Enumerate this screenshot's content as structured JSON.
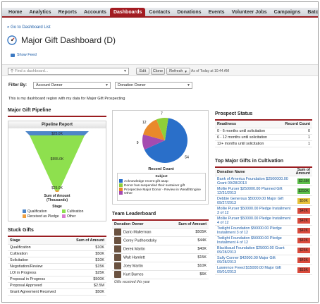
{
  "nav": {
    "tabs": [
      "Home",
      "Analytics",
      "Reports",
      "Accounts",
      "Dashboards",
      "Contacts",
      "Donations",
      "Events",
      "Volunteer Jobs",
      "Campaigns",
      "Batches",
      "Util"
    ],
    "active": "Dashboards"
  },
  "back_link": "« Go to Dashboard List",
  "title": "Major Gift Dashboard (D)",
  "show_feed": "Show Feed",
  "toolbar": {
    "find_placeholder": "Find a dashboard...",
    "edit": "Edit",
    "clone": "Clone",
    "refresh": "Refresh",
    "as_of": "As of Today at 10:44 AM"
  },
  "filter": {
    "label": "Filter By:",
    "filter1": "Account Owner",
    "filter2": "Donation Owner"
  },
  "description": "This is my dashboard region with my data for Major Gift Prospecting",
  "pipeline": {
    "section_title": "Major Gift Pipeline",
    "report_title": "Pipeline Report",
    "labels": [
      "$25.0K",
      "$555.0K",
      "$25.0K"
    ],
    "axis_title": "Sum of Amount (Thousands)",
    "stage_label": "Stage",
    "legend": [
      "Qualification",
      "Cultivation",
      "Received as Pledge",
      "Other"
    ],
    "colors": [
      "#4e86c8",
      "#8ee04e",
      "#f0a040",
      "#d87bd0"
    ]
  },
  "pie": {
    "labels": [
      "9",
      "12",
      "7",
      "54"
    ],
    "subject_label": "Subject",
    "record_count_label": "Record Count",
    "legend": [
      "Acknowledge recent gift asap",
      "Donor has suspended their sustainer gift",
      "Prospective Major Donor - Review in WealthEngine",
      "Other"
    ],
    "colors": [
      "#2a6fc9",
      "#8ecf3a",
      "#e9892b",
      "#a54bb0"
    ],
    "chart_data": {
      "type": "pie",
      "categories": [
        "Acknowledge recent gift asap",
        "Donor has suspended their sustainer gift",
        "Prospective Major Donor - Review in WealthEngine",
        "Other"
      ],
      "values": [
        54,
        7,
        12,
        9
      ]
    }
  },
  "stuck": {
    "section_title": "Stuck Gifts",
    "col1": "Stage",
    "col2": "Sum of Amount",
    "rows": [
      {
        "stage": "Qualification",
        "amount": "$10K"
      },
      {
        "stage": "Cultivation",
        "amount": "$50K"
      },
      {
        "stage": "Solicitation",
        "amount": "$10K"
      },
      {
        "stage": "Negotiation/Review",
        "amount": "$15K"
      },
      {
        "stage": "LOI in Progress",
        "amount": "$25K"
      },
      {
        "stage": "Proposal in Progress",
        "amount": "$500K"
      },
      {
        "stage": "Proposal Approved",
        "amount": "$2.5M"
      },
      {
        "stage": "Grant Agreement Received",
        "amount": "$50K"
      }
    ]
  },
  "leaderboard": {
    "section_title": "Team Leaderboard",
    "col1": "Donation Owner",
    "col2": "Sum of Amount",
    "rows": [
      {
        "name": "Dario Mallerman",
        "amount": "$505K"
      },
      {
        "name": "Corey Pudhorodsky",
        "amount": "$44K"
      },
      {
        "name": "Derek Martin",
        "amount": "$40K"
      },
      {
        "name": "Walt Hamlett",
        "amount": "$15K"
      },
      {
        "name": "Joey Martin",
        "amount": "$10K"
      },
      {
        "name": "Kurt Barnes",
        "amount": "$6K"
      }
    ],
    "footer": "Gifts received this year"
  },
  "prospect": {
    "section_title": "Prospect Status",
    "col1": "Readiness",
    "col2": "Record Count",
    "rows": [
      {
        "label": "0 - 6 months until solicitation",
        "count": "0"
      },
      {
        "label": "6 - 12 months until solicitation",
        "count": "1"
      },
      {
        "label": "12+ months until solicitation",
        "count": "1"
      }
    ]
  },
  "top_gifts": {
    "section_title": "Top Major Gifts in Cultivation",
    "col1": "Donation Name",
    "col2": "Sum of Amount",
    "rows": [
      {
        "name": "Bank of America Foundation $2500000.00 Grant 09/28/2013",
        "amount": "$2.5M",
        "color": "#5cbf4a"
      },
      {
        "name": "Mollie Purser $250000.00 Planned Gift 12/31/2013",
        "amount": "$250K",
        "color": "#5cbf4a"
      },
      {
        "name": "Debbie Generous $50000.00 Major Gift 09/27/2013",
        "amount": "$50K",
        "color": "#e8c23a"
      },
      {
        "name": "Mollie Purser $50000.00 Pledge Installment 3 of 12",
        "amount": "$42K",
        "color": "#d94a3c"
      },
      {
        "name": "Mollie Purser $50000.00 Pledge Installment 4 of 12",
        "amount": "$42K",
        "color": "#d94a3c"
      },
      {
        "name": "Twilight Foundation $50000.00 Pledge Installment 3 of 12",
        "amount": "$42K",
        "color": "#d94a3c"
      },
      {
        "name": "Twilight Foundation $50000.00 Pledge Installment 4 of 12",
        "amount": "$42K",
        "color": "#d94a3c"
      },
      {
        "name": "Blackbaud Foundation $25000.00 Grant 09/28/2013",
        "amount": "$25K",
        "color": "#d94a3c"
      },
      {
        "name": "Sally Conner $42000.00 Major Gift 09/28/2013",
        "amount": "$42K",
        "color": "#d94a3c"
      },
      {
        "name": "Lawrence Freed $15000.00 Major Gift 09/01/2013",
        "amount": "$15K",
        "color": "#d94a3c"
      }
    ]
  }
}
